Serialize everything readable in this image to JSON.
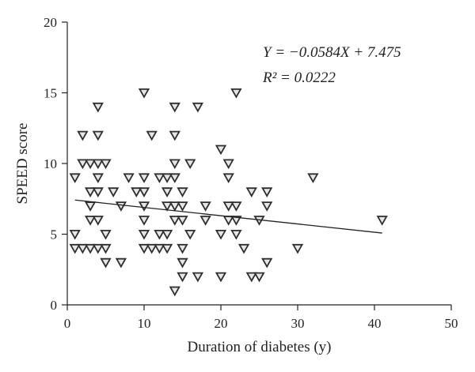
{
  "chart_data": {
    "type": "scatter",
    "title": "",
    "xlabel": "Duration of diabetes (y)",
    "ylabel": "SPEED score",
    "xlim": [
      0,
      50
    ],
    "ylim": [
      0,
      20
    ],
    "xticks": [
      "0",
      "10",
      "20",
      "30",
      "40",
      "50"
    ],
    "yticks": [
      "0",
      "5",
      "10",
      "15",
      "20"
    ],
    "grid": false,
    "marker": "inverted-triangle",
    "marker_color": "#2e2e2e",
    "marker_fill": "#e6e6e6",
    "equation": "Y = −0.0584X + 7.475",
    "r_squared": "R² = 0.0222",
    "fit": {
      "slope": -0.0584,
      "intercept": 7.475,
      "x_range": [
        1,
        41
      ]
    },
    "series": [
      {
        "points": [
          [
            1,
            9
          ],
          [
            1,
            5
          ],
          [
            1,
            4
          ],
          [
            2,
            12
          ],
          [
            2,
            10
          ],
          [
            2,
            4
          ],
          [
            3,
            10
          ],
          [
            3,
            8
          ],
          [
            3,
            7
          ],
          [
            3,
            6
          ],
          [
            3,
            4
          ],
          [
            4,
            14
          ],
          [
            4,
            12
          ],
          [
            4,
            10
          ],
          [
            4,
            9
          ],
          [
            4,
            8
          ],
          [
            4,
            6
          ],
          [
            4,
            4
          ],
          [
            5,
            10
          ],
          [
            5,
            5
          ],
          [
            5,
            4
          ],
          [
            5,
            3
          ],
          [
            6,
            8
          ],
          [
            7,
            7
          ],
          [
            7,
            3
          ],
          [
            8,
            9
          ],
          [
            9,
            8
          ],
          [
            10,
            15
          ],
          [
            10,
            9
          ],
          [
            10,
            8
          ],
          [
            10,
            7
          ],
          [
            10,
            6
          ],
          [
            10,
            5
          ],
          [
            10,
            4
          ],
          [
            11,
            12
          ],
          [
            11,
            4
          ],
          [
            12,
            9
          ],
          [
            12,
            5
          ],
          [
            12,
            4
          ],
          [
            13,
            9
          ],
          [
            13,
            8
          ],
          [
            13,
            7
          ],
          [
            13,
            5
          ],
          [
            13,
            4
          ],
          [
            14,
            14
          ],
          [
            14,
            12
          ],
          [
            14,
            10
          ],
          [
            14,
            9
          ],
          [
            14,
            7
          ],
          [
            14,
            6
          ],
          [
            14,
            1
          ],
          [
            15,
            8
          ],
          [
            15,
            7
          ],
          [
            15,
            6
          ],
          [
            15,
            4
          ],
          [
            15,
            3
          ],
          [
            15,
            2
          ],
          [
            16,
            10
          ],
          [
            16,
            5
          ],
          [
            17,
            14
          ],
          [
            17,
            2
          ],
          [
            18,
            7
          ],
          [
            18,
            6
          ],
          [
            20,
            11
          ],
          [
            20,
            5
          ],
          [
            20,
            2
          ],
          [
            21,
            10
          ],
          [
            21,
            9
          ],
          [
            21,
            7
          ],
          [
            21,
            6
          ],
          [
            22,
            15
          ],
          [
            22,
            7
          ],
          [
            22,
            6
          ],
          [
            22,
            5
          ],
          [
            23,
            4
          ],
          [
            24,
            8
          ],
          [
            24,
            2
          ],
          [
            25,
            6
          ],
          [
            25,
            2
          ],
          [
            26,
            8
          ],
          [
            26,
            7
          ],
          [
            26,
            3
          ],
          [
            30,
            4
          ],
          [
            32,
            9
          ],
          [
            41,
            6
          ]
        ]
      }
    ]
  }
}
